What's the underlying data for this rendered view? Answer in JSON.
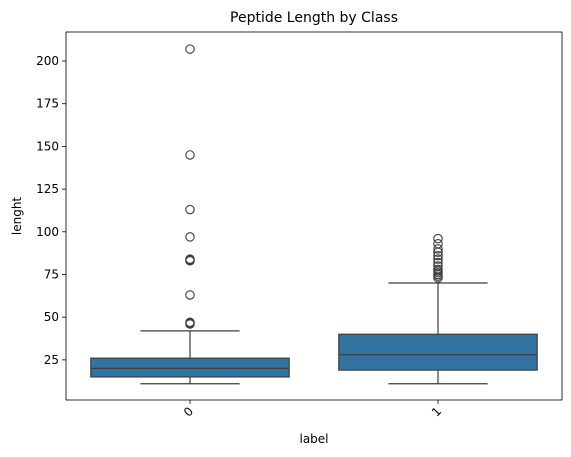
{
  "chart_data": {
    "type": "box",
    "title": "Peptide Length by Class",
    "xlabel": "label",
    "ylabel": "lenght",
    "categories": [
      "0",
      "1"
    ],
    "ylim": [
      1.5,
      217
    ],
    "yticks": [
      25,
      50,
      75,
      100,
      125,
      150,
      175,
      200
    ],
    "grid": false,
    "box_color": "#3274a1",
    "line_color": "#3d3d3d",
    "boxes": [
      {
        "category": "0",
        "whisker_low": 11,
        "q1": 15,
        "median": 20,
        "q3": 26,
        "whisker_high": 42,
        "outliers": [
          46,
          46.5,
          47,
          63,
          83,
          83.5,
          84,
          97,
          113,
          145,
          207
        ]
      },
      {
        "category": "1",
        "whisker_low": 11,
        "q1": 19,
        "median": 28,
        "q3": 40,
        "whisker_high": 70,
        "outliers": [
          73,
          74,
          75,
          76,
          77,
          78,
          80,
          82,
          84,
          86,
          88,
          90,
          93,
          96
        ]
      }
    ]
  }
}
